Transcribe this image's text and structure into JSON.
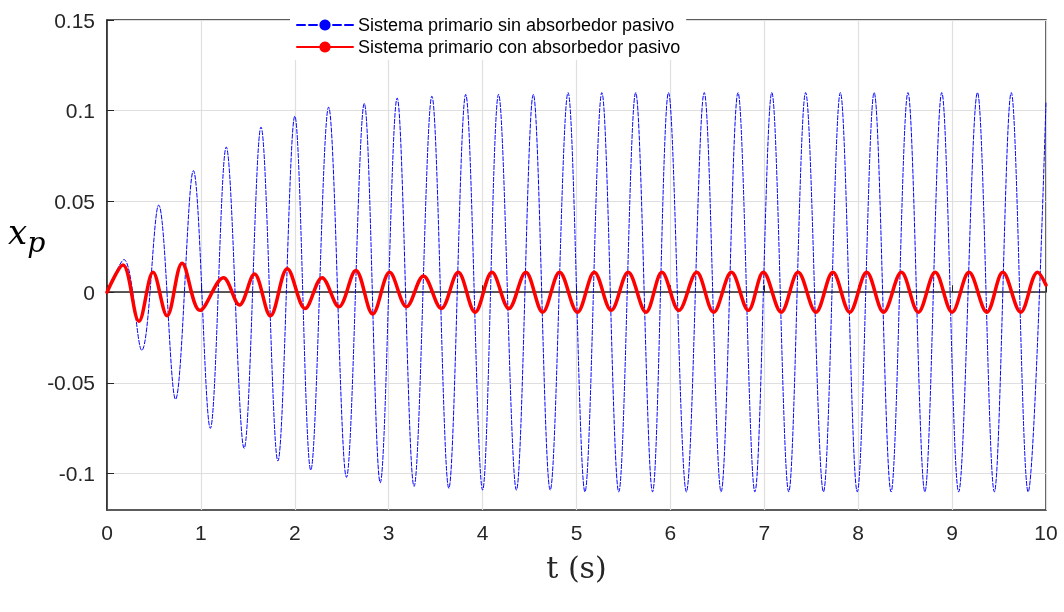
{
  "chart_data": {
    "type": "line",
    "xlabel": "t (s)",
    "ylabel": "x$_{p}$",
    "xlim": [
      0,
      10
    ],
    "xticks": [
      0,
      1,
      2,
      3,
      4,
      5,
      6,
      7,
      8,
      9,
      10
    ],
    "ylim": [
      -0.12,
      0.15
    ],
    "yticks": [
      -0.1,
      -0.05,
      0,
      0.05,
      0.1,
      0.15
    ],
    "grid": true,
    "legend": "top",
    "marker": "none",
    "series": [
      {
        "name": "Sistema primario sin absorbedor pasivo",
        "color": "#0000ff",
        "line_style": "dashed",
        "x": [
          0,
          0.18,
          0.37,
          0.55,
          0.73,
          0.92,
          1.1,
          1.27,
          1.46,
          1.64,
          1.82,
          2.0,
          2.17,
          2.36,
          2.55,
          2.74,
          2.91,
          3.09,
          3.27,
          3.46,
          3.64,
          3.82,
          4.0,
          4.17,
          4.36,
          4.54,
          4.72,
          4.91,
          5.09,
          5.27,
          5.45,
          5.63,
          5.81,
          5.98,
          6.17,
          6.36,
          6.54,
          6.72,
          6.9,
          7.08,
          7.26,
          7.44,
          7.63,
          7.81,
          7.99,
          8.17,
          8.35,
          8.53,
          8.71,
          8.89,
          9.07,
          9.27,
          9.45,
          9.63,
          9.81,
          10
        ],
        "values": [
          0,
          0.018,
          -0.032,
          0.048,
          -0.059,
          0.067,
          -0.075,
          0.08,
          -0.086,
          0.091,
          -0.093,
          0.097,
          -0.098,
          0.102,
          -0.102,
          0.104,
          -0.105,
          0.107,
          -0.107,
          0.108,
          -0.108,
          0.109,
          -0.109,
          0.109,
          -0.109,
          0.109,
          -0.109,
          0.11,
          -0.11,
          0.11,
          -0.11,
          0.11,
          -0.11,
          0.11,
          -0.11,
          0.11,
          -0.11,
          0.11,
          -0.11,
          0.11,
          -0.11,
          0.11,
          -0.11,
          0.11,
          -0.11,
          0.11,
          -0.11,
          0.11,
          -0.11,
          0.11,
          -0.11,
          0.11,
          -0.11,
          0.11,
          -0.11,
          0.105
        ]
      },
      {
        "name": "Sistema primario con absorbedor pasivo",
        "color": "#ff0000",
        "line_style": "solid",
        "x": [
          0,
          0.17,
          0.34,
          0.49,
          0.64,
          0.8,
          0.99,
          1.24,
          1.41,
          1.57,
          1.74,
          1.92,
          2.11,
          2.29,
          2.47,
          2.65,
          2.83,
          3.01,
          3.19,
          3.37,
          3.56,
          3.74,
          3.92,
          4.1,
          4.28,
          4.46,
          4.64,
          4.82,
          5.01,
          5.19,
          5.37,
          5.55,
          5.74,
          5.91,
          6.09,
          6.28,
          6.46,
          6.65,
          6.83,
          6.99,
          7.18,
          7.36,
          7.55,
          7.73,
          7.91,
          8.09,
          8.27,
          8.46,
          8.64,
          8.82,
          9.0,
          9.18,
          9.37,
          9.54,
          9.73,
          9.91,
          10
        ],
        "values": [
          0,
          0.015,
          -0.016,
          0.011,
          -0.013,
          0.016,
          -0.01,
          0.008,
          -0.007,
          0.01,
          -0.013,
          0.013,
          -0.009,
          0.008,
          -0.008,
          0.012,
          -0.012,
          0.011,
          -0.008,
          0.009,
          -0.009,
          0.011,
          -0.011,
          0.011,
          -0.009,
          0.011,
          -0.011,
          0.011,
          -0.011,
          0.011,
          -0.01,
          0.011,
          -0.011,
          0.011,
          -0.01,
          0.011,
          -0.011,
          0.011,
          -0.01,
          0.011,
          -0.011,
          0.011,
          -0.011,
          0.011,
          -0.011,
          0.011,
          -0.011,
          0.011,
          -0.011,
          0.011,
          -0.011,
          0.011,
          -0.011,
          0.011,
          -0.011,
          0.011,
          0.004
        ]
      }
    ]
  }
}
